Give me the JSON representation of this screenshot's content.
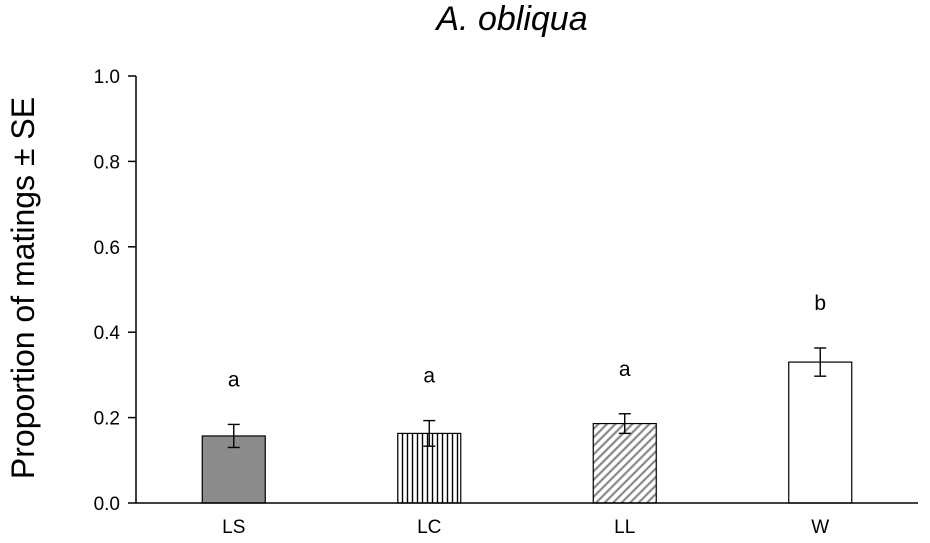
{
  "chart_data": {
    "type": "bar",
    "title": "A. obliqua",
    "xlabel": "",
    "ylabel": "Proportion of matings ± SE",
    "ylim": [
      0,
      1.0
    ],
    "yticks": [
      "0.0",
      "0.2",
      "0.4",
      "0.6",
      "0.8",
      "1.0"
    ],
    "yticks_values": [
      0,
      0.2,
      0.4,
      0.6,
      0.8,
      1.0
    ],
    "categories": [
      "LS",
      "LC",
      "LL",
      "W"
    ],
    "values": [
      0.157,
      0.163,
      0.186,
      0.33
    ],
    "errors": [
      0.027,
      0.03,
      0.023,
      0.033
    ],
    "significance": [
      "a",
      "a",
      "a",
      "b"
    ],
    "fills": [
      "solid-gray",
      "vertical-stripes",
      "diagonal-hatch",
      "white"
    ],
    "colors": {
      "solid_gray": "#8c8c8c",
      "stripe": "#000000",
      "hatch": "#888888",
      "axis": "#000000"
    },
    "grid": false,
    "legend": "none"
  }
}
